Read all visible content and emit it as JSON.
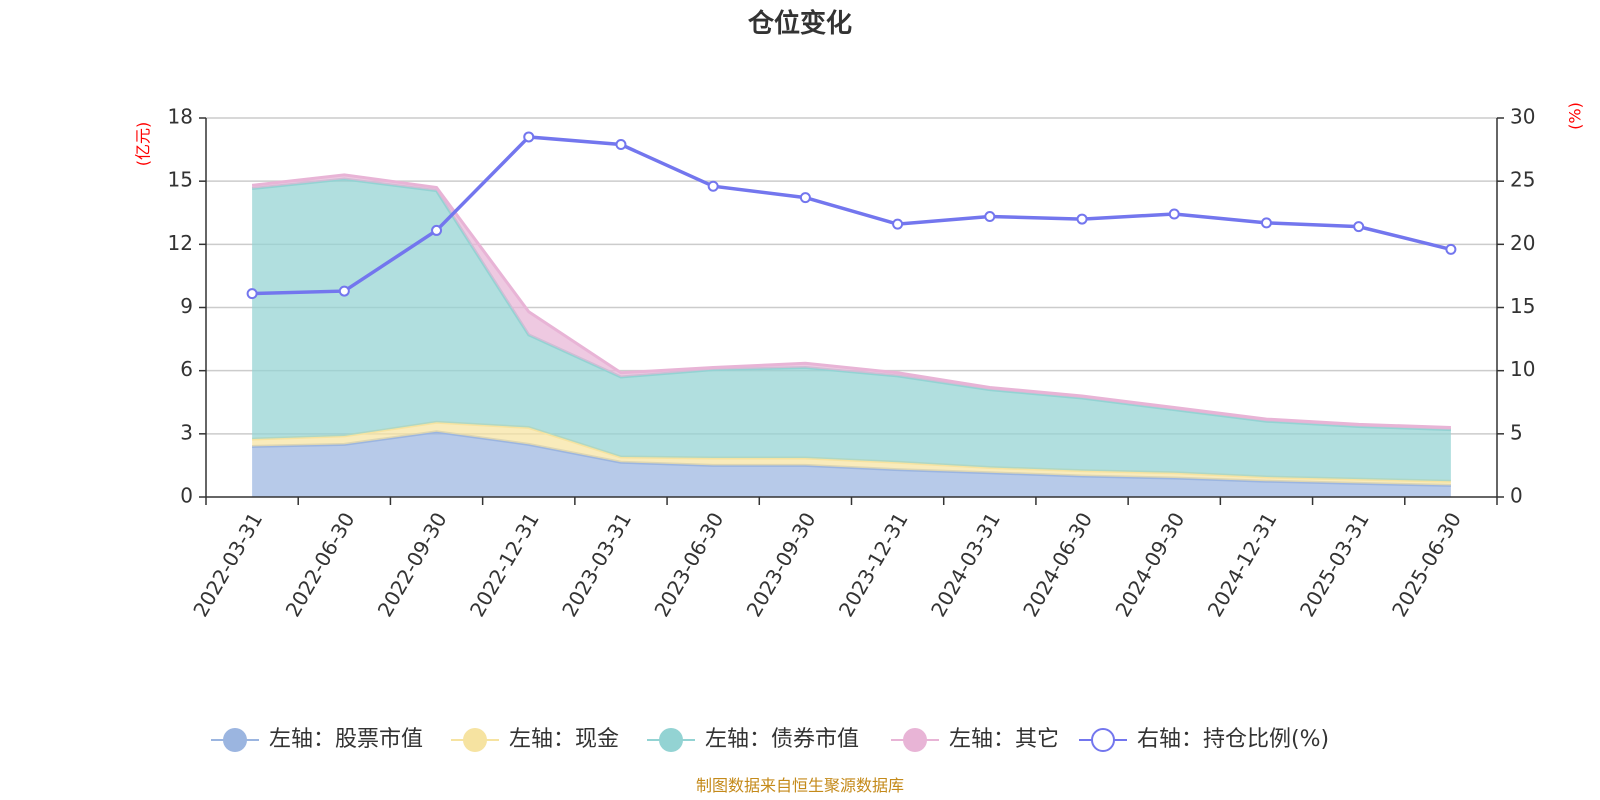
{
  "chart_data": {
    "type": "area",
    "title": "仓位变化",
    "categories": [
      "2022-03-31",
      "2022-06-30",
      "2022-09-30",
      "2022-12-31",
      "2023-03-31",
      "2023-06-30",
      "2023-09-30",
      "2023-12-31",
      "2024-03-31",
      "2024-06-30",
      "2024-09-30",
      "2024-12-31",
      "2025-03-31",
      "2025-06-30"
    ],
    "left_axis": {
      "unit": "(亿元)",
      "ylim": [
        0,
        18
      ],
      "ticks": [
        0,
        3,
        6,
        9,
        12,
        15,
        18
      ]
    },
    "right_axis": {
      "unit": "(%)",
      "ylim": [
        0,
        30
      ],
      "ticks": [
        0,
        5,
        10,
        15,
        20,
        25,
        30
      ]
    },
    "stacked_series": [
      {
        "name": "左轴：股票市值",
        "color": "#9bb5e0",
        "values": [
          2.4,
          2.5,
          3.1,
          2.5,
          1.65,
          1.5,
          1.5,
          1.3,
          1.15,
          1.0,
          0.9,
          0.75,
          0.65,
          0.55
        ]
      },
      {
        "name": "左轴：现金",
        "color": "#f6e3a1",
        "values": [
          0.35,
          0.4,
          0.45,
          0.8,
          0.25,
          0.35,
          0.35,
          0.35,
          0.25,
          0.25,
          0.25,
          0.2,
          0.2,
          0.2
        ]
      },
      {
        "name": "左轴：债券市值",
        "color": "#93d3d3",
        "values": [
          11.9,
          12.2,
          11.0,
          4.4,
          3.8,
          4.2,
          4.3,
          4.1,
          3.7,
          3.45,
          3.0,
          2.65,
          2.5,
          2.45
        ]
      },
      {
        "name": "左轴：其它",
        "color": "#e8b4d6",
        "values": [
          0.15,
          0.2,
          0.15,
          1.1,
          0.2,
          0.1,
          0.2,
          0.15,
          0.1,
          0.1,
          0.1,
          0.1,
          0.1,
          0.1
        ]
      }
    ],
    "line_series": {
      "name": "右轴：持仓比例(%)",
      "color": "#7376ee",
      "values": [
        16.1,
        16.3,
        21.1,
        28.5,
        27.9,
        24.6,
        23.7,
        21.6,
        22.2,
        22.0,
        22.4,
        21.7,
        21.4,
        19.6
      ]
    },
    "grid": true,
    "legend_position": "bottom",
    "source_note": "制图数据来自恒生聚源数据库"
  }
}
